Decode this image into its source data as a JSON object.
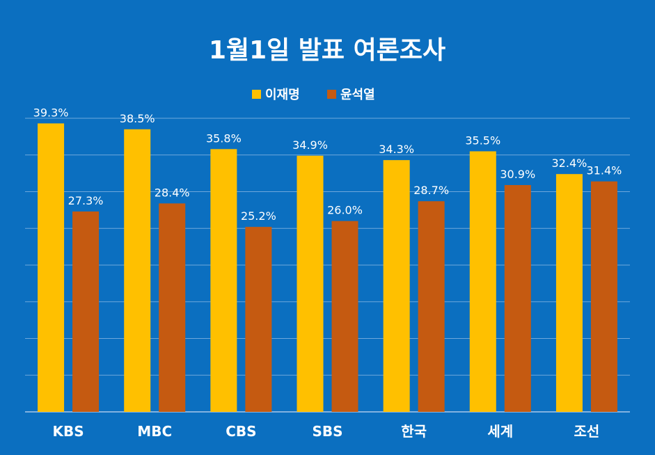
{
  "colors": {
    "background": "#0b6fc0",
    "gridline": "#6fa8dc",
    "text": "#ffffff",
    "series_1": "#ffc000",
    "series_2": "#c55a11"
  },
  "chart_data": {
    "type": "bar",
    "title": "1월1일 발표 여론조사",
    "xlabel": "",
    "ylabel": "",
    "categories": [
      "KBS",
      "MBC",
      "CBS",
      "SBS",
      "한국",
      "세계",
      "조선"
    ],
    "series": [
      {
        "name": "이재명",
        "values": [
          39.3,
          38.5,
          35.8,
          34.9,
          34.3,
          35.5,
          32.4
        ],
        "labels": [
          "39.3%",
          "38.5%",
          "35.8%",
          "34.9%",
          "34.3%",
          "35.5%",
          "32.4%"
        ]
      },
      {
        "name": "윤석열",
        "values": [
          27.3,
          28.4,
          25.2,
          26.0,
          28.7,
          30.9,
          31.4
        ],
        "labels": [
          "27.3%",
          "28.4%",
          "25.2%",
          "26.0%",
          "28.7%",
          "30.9%",
          "31.4%"
        ]
      }
    ],
    "ylim": [
      0,
      40
    ],
    "unit": "%",
    "grid": true,
    "legend": "top-center"
  }
}
